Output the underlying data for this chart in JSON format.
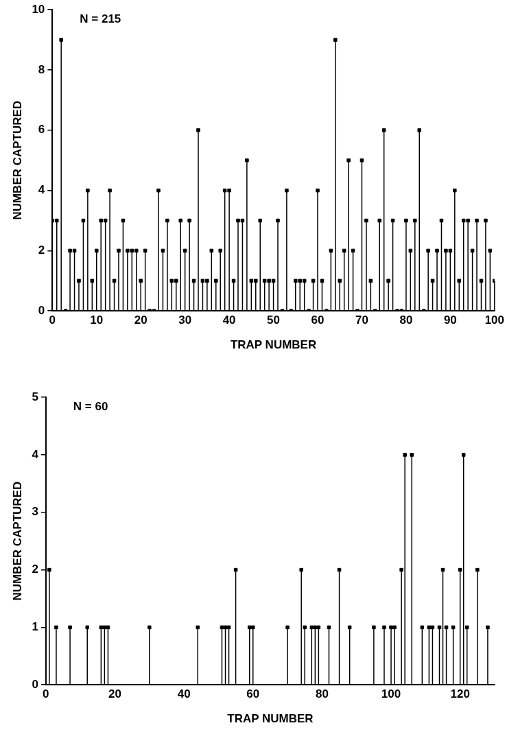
{
  "chart_data": [
    {
      "type": "lollipop",
      "xlabel": "TRAP NUMBER",
      "ylabel": "NUMBER CAPTURED",
      "annotations": [
        "N = 215"
      ],
      "x": [
        0,
        1,
        2,
        3,
        4,
        5,
        6,
        7,
        8,
        9,
        10,
        11,
        12,
        13,
        14,
        15,
        16,
        17,
        18,
        19,
        20,
        21,
        22,
        23,
        24,
        25,
        26,
        27,
        28,
        29,
        30,
        31,
        32,
        33,
        34,
        35,
        36,
        37,
        38,
        39,
        40,
        41,
        42,
        43,
        44,
        45,
        46,
        47,
        48,
        49,
        50,
        51,
        52,
        53,
        54,
        55,
        56,
        57,
        58,
        59,
        60,
        61,
        62,
        63,
        64,
        65,
        66,
        67,
        68,
        69,
        70,
        71,
        72,
        73,
        74,
        75,
        76,
        77,
        78,
        79,
        80,
        81,
        82,
        83,
        84,
        85,
        86,
        87,
        88,
        89,
        90,
        91,
        92,
        93,
        94,
        95,
        96,
        97,
        98,
        99,
        100
      ],
      "values": [
        3,
        3,
        9,
        0,
        2,
        2,
        1,
        3,
        4,
        1,
        2,
        3,
        3,
        4,
        1,
        2,
        3,
        2,
        2,
        2,
        1,
        2,
        0,
        0,
        4,
        2,
        3,
        1,
        1,
        3,
        2,
        3,
        1,
        6,
        1,
        1,
        2,
        1,
        2,
        4,
        4,
        1,
        3,
        3,
        5,
        1,
        1,
        3,
        1,
        1,
        1,
        3,
        0,
        4,
        0,
        1,
        1,
        1,
        0,
        1,
        4,
        1,
        0,
        2,
        9,
        1,
        2,
        5,
        2,
        0,
        5,
        3,
        1,
        0,
        3,
        6,
        1,
        3,
        0,
        0,
        3,
        2,
        3,
        6,
        0,
        2,
        1,
        2,
        3,
        2,
        2,
        4,
        1,
        3,
        3,
        2,
        3,
        1,
        3,
        2,
        1
      ],
      "color": "#000000",
      "marker": "square",
      "grid": false,
      "legend": false,
      "xlim": [
        0,
        100
      ],
      "xticks": [
        0,
        10,
        20,
        30,
        40,
        50,
        60,
        70,
        80,
        90,
        100
      ],
      "ylim": [
        0,
        10
      ],
      "yticks": [
        0,
        2,
        4,
        6,
        8,
        10
      ]
    },
    {
      "type": "lollipop",
      "xlabel": "TRAP NUMBER",
      "ylabel": "NUMBER CAPTURED",
      "annotations": [
        "N = 60"
      ],
      "x": [
        1,
        3,
        7,
        12,
        16,
        17,
        18,
        30,
        44,
        51,
        52,
        53,
        55,
        59,
        60,
        70,
        74,
        75,
        77,
        78,
        79,
        82,
        85,
        88,
        95,
        98,
        100,
        101,
        103,
        104,
        106,
        109,
        111,
        112,
        114,
        115,
        116,
        118,
        120,
        121,
        122,
        125,
        128
      ],
      "values": [
        2,
        1,
        1,
        1,
        1,
        1,
        1,
        1,
        1,
        1,
        1,
        1,
        2,
        1,
        1,
        1,
        2,
        1,
        1,
        1,
        1,
        1,
        2,
        1,
        1,
        1,
        1,
        1,
        2,
        4,
        4,
        1,
        1,
        1,
        1,
        2,
        1,
        1,
        2,
        4,
        1,
        2,
        1
      ],
      "color": "#000000",
      "marker": "square",
      "grid": false,
      "legend": false,
      "xlim": [
        0,
        130
      ],
      "xticks": [
        0,
        20,
        40,
        60,
        80,
        100,
        120
      ],
      "ylim": [
        0,
        5
      ],
      "yticks": [
        0,
        1,
        2,
        3,
        4,
        5
      ]
    }
  ]
}
